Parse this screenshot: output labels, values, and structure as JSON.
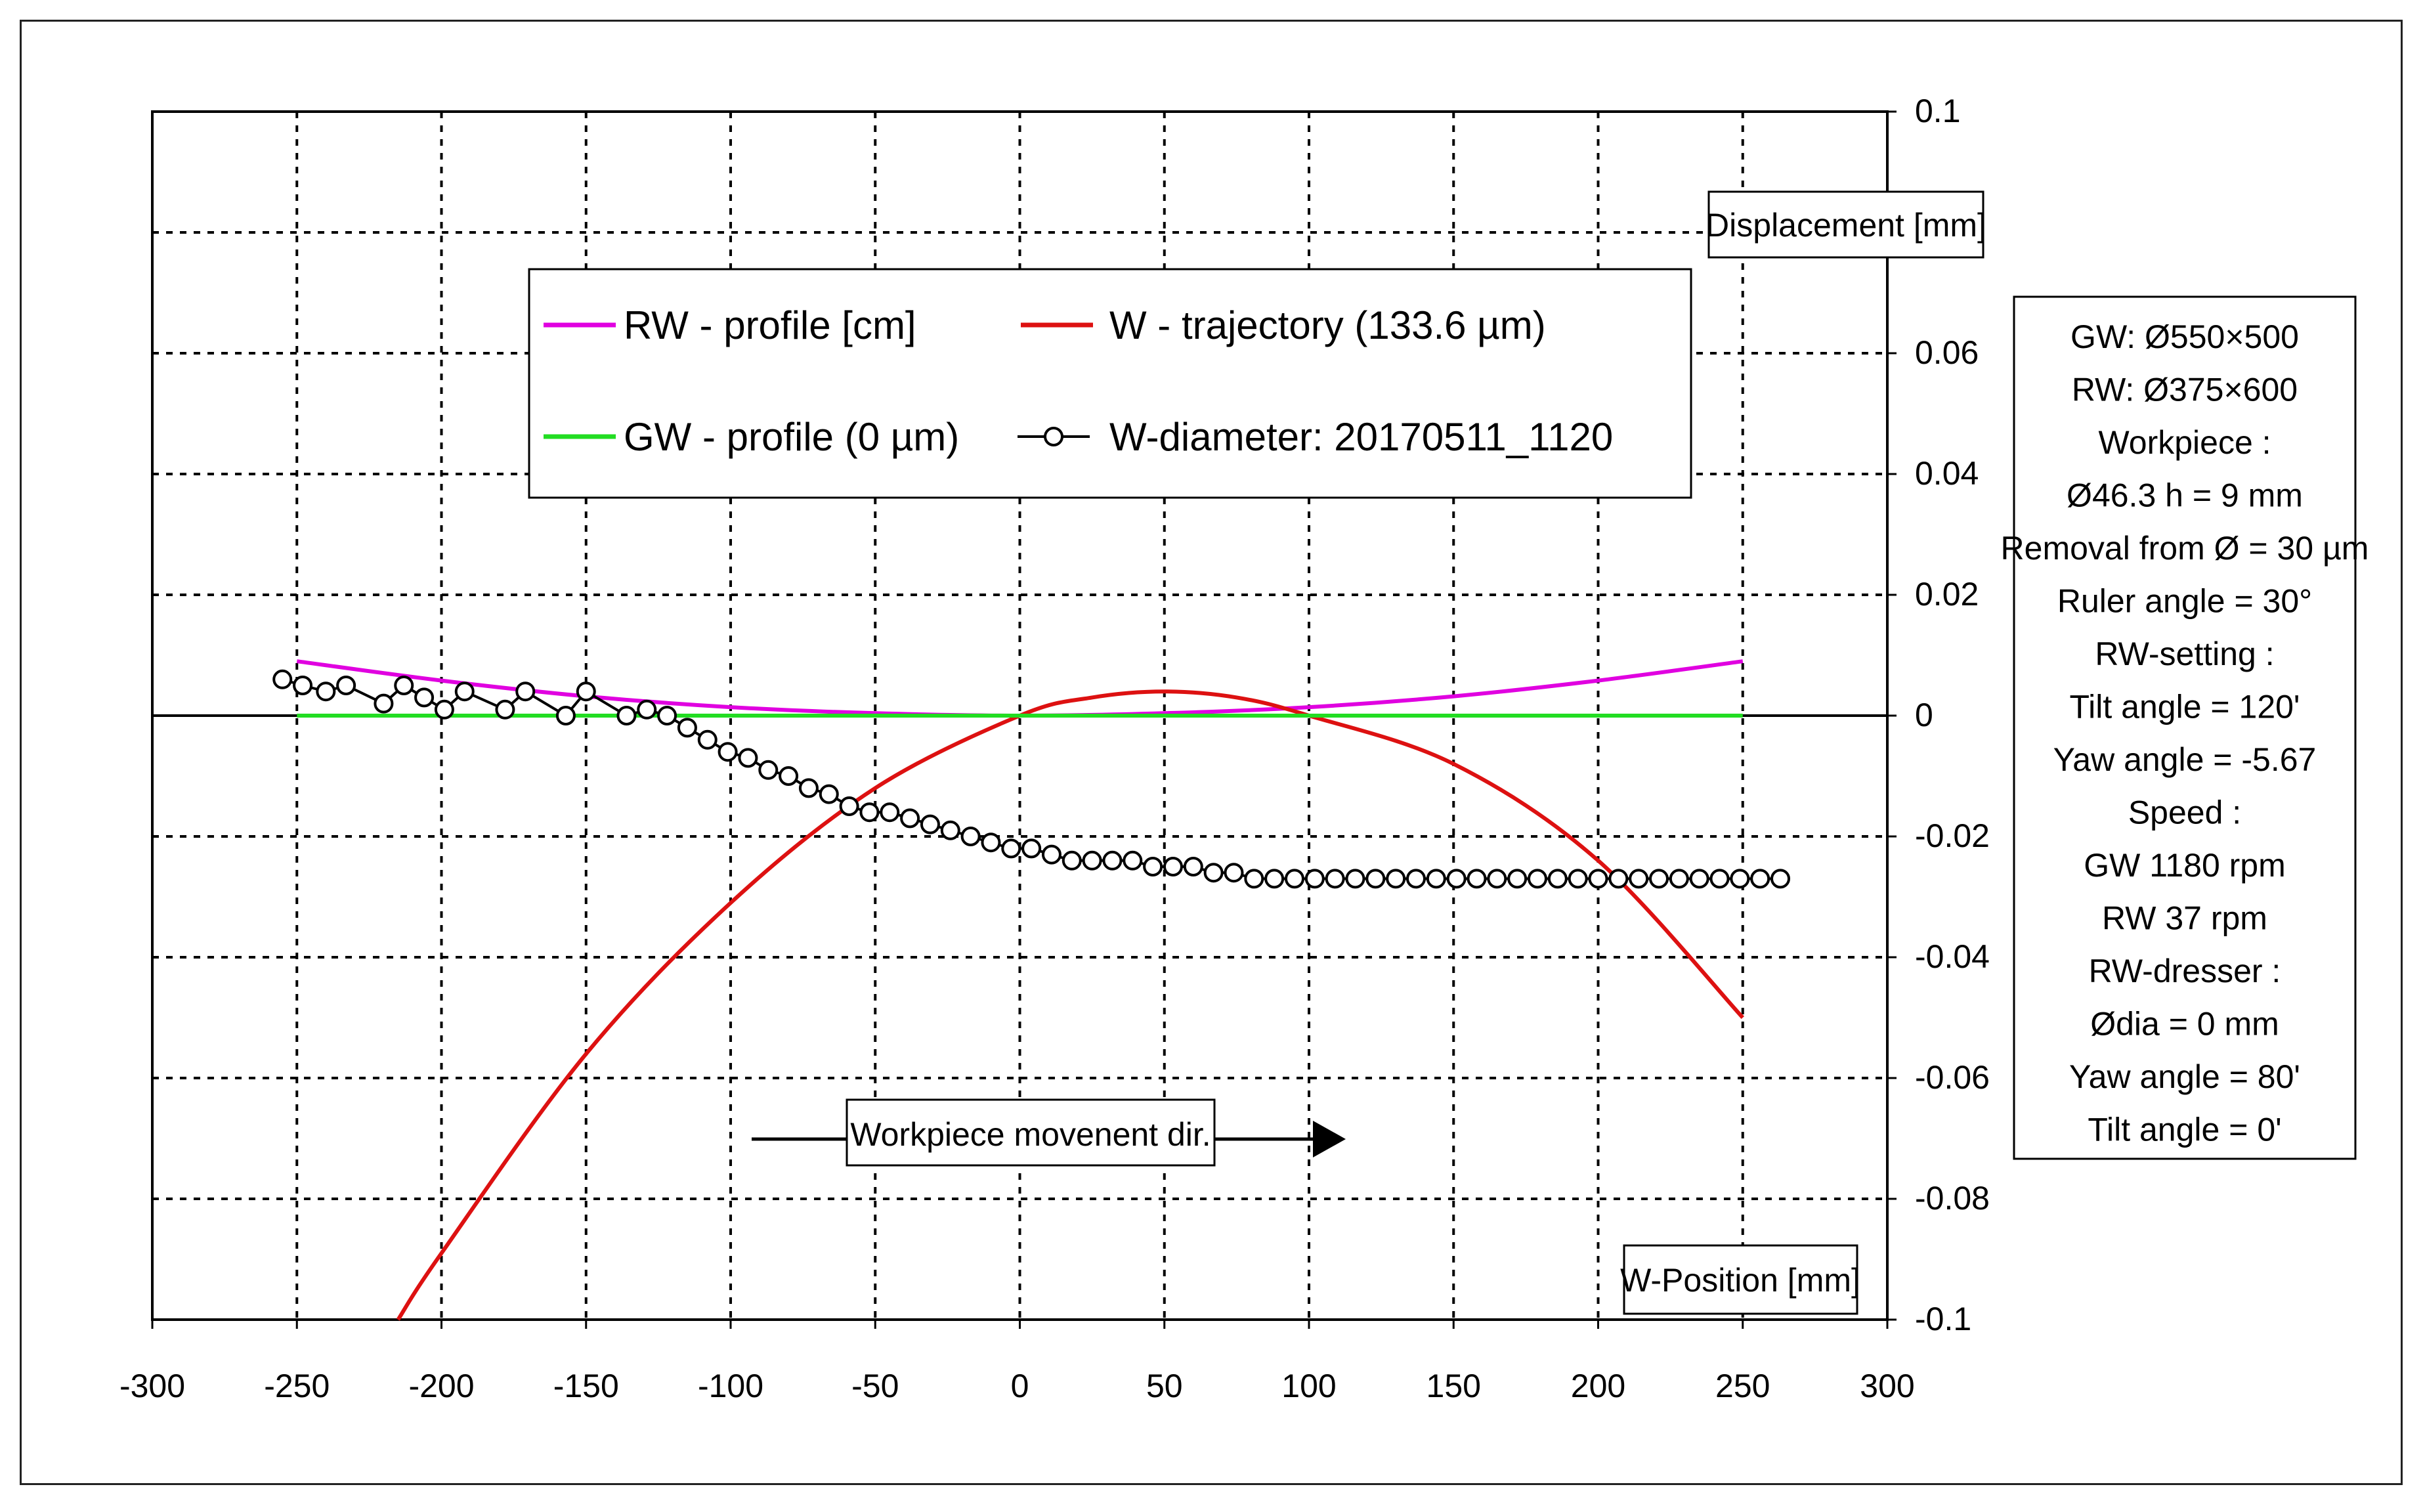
{
  "chart_data": {
    "type": "line",
    "xlabel": "W-Position [mm]",
    "ylabel": "Displacement [mm]",
    "xlim": [
      -300,
      300
    ],
    "ylim": [
      -0.1,
      0.1
    ],
    "x_ticks": [
      -300,
      -250,
      -200,
      -150,
      -100,
      -50,
      0,
      50,
      100,
      150,
      200,
      250,
      300
    ],
    "y_ticks": [
      0.1,
      0.06,
      0.04,
      0.02,
      0,
      -0.02,
      -0.04,
      -0.06,
      -0.08,
      -0.1
    ],
    "y_tick_labels": [
      "0.1",
      "0.06",
      "0.04",
      "0.02",
      "0",
      "-0.02",
      "-0.04",
      "-0.06",
      "-0.08",
      "-0.1"
    ],
    "grid": true,
    "legend_position": "top-center",
    "series": [
      {
        "name": "RW - profile [cm]",
        "color": "#e000e0",
        "x": [
          -250,
          -200,
          -150,
          -100,
          -50,
          0,
          50,
          100,
          150,
          200,
          250
        ],
        "y": [
          0.009,
          0.0058,
          0.0032,
          0.0014,
          0.0004,
          0.0,
          0.0004,
          0.0014,
          0.0032,
          0.0058,
          0.009
        ]
      },
      {
        "name": "W - trajectory (133.6 µm)",
        "color": "#dd1111",
        "x": [
          -215,
          -200,
          -150,
          -100,
          -50,
          0,
          25,
          50,
          75,
          100,
          150,
          200,
          250
        ],
        "y": [
          -0.1,
          -0.089,
          -0.056,
          -0.031,
          -0.012,
          0.0,
          0.003,
          0.004,
          0.003,
          0.0,
          -0.008,
          -0.024,
          -0.05
        ]
      },
      {
        "name": "GW - profile (0 µm)",
        "color": "#22dd22",
        "x": [
          -250,
          250
        ],
        "y": [
          0,
          0
        ]
      },
      {
        "name": "W-diameter: 20170511_1120",
        "color": "#000000",
        "marker": "circle",
        "x": [
          -255,
          -248,
          -240,
          -233,
          -220,
          -213,
          -206,
          -199,
          -192,
          -178,
          -171,
          -157,
          -150,
          -136,
          -129,
          -122,
          -115,
          -108,
          -101,
          -94,
          -87,
          -80,
          -73,
          -66,
          -59,
          -52,
          -45,
          -38,
          -31,
          -24,
          -17,
          -10,
          -3,
          4,
          11,
          18,
          25,
          32,
          39,
          46,
          53,
          60,
          67,
          74,
          81,
          88,
          95,
          102,
          109,
          116,
          123,
          130,
          137,
          144,
          151,
          158,
          165,
          172,
          179,
          186,
          193,
          200,
          207,
          214,
          221,
          228,
          235,
          242,
          249,
          256,
          263
        ],
        "y": [
          0.006,
          0.005,
          0.004,
          0.005,
          0.002,
          0.005,
          0.003,
          0.001,
          0.004,
          0.001,
          0.004,
          0.0,
          0.004,
          0.0,
          0.001,
          0.0,
          -0.002,
          -0.004,
          -0.006,
          -0.007,
          -0.009,
          -0.01,
          -0.012,
          -0.013,
          -0.015,
          -0.016,
          -0.016,
          -0.017,
          -0.018,
          -0.019,
          -0.02,
          -0.021,
          -0.022,
          -0.022,
          -0.023,
          -0.024,
          -0.024,
          -0.024,
          -0.024,
          -0.025,
          -0.025,
          -0.025,
          -0.026,
          -0.026,
          -0.027,
          -0.027,
          -0.027,
          -0.027,
          -0.027,
          -0.027,
          -0.027,
          -0.027,
          -0.027,
          -0.027,
          -0.027,
          -0.027,
          -0.027,
          -0.027,
          -0.027,
          -0.027,
          -0.027,
          -0.027,
          -0.027,
          -0.027,
          -0.027,
          -0.027,
          -0.027,
          -0.027,
          -0.027,
          -0.027,
          -0.027
        ]
      }
    ],
    "annotation": "Workpiece movenent dir."
  },
  "info_panel": {
    "lines": [
      "GW: Ø550×500",
      "RW: Ø375×600",
      "Workpiece :",
      "Ø46.3  h = 9 mm",
      "Removal from Ø = 30 µm",
      "Ruler angle = 30°",
      "RW-setting :",
      "Tilt angle = 120'",
      "Yaw angle = -5.67",
      "Speed :",
      "GW 1180 rpm",
      "RW 37 rpm",
      "RW-dresser :",
      "Ødia = 0 mm",
      "Yaw angle = 80'",
      "Tilt angle = 0'"
    ]
  }
}
